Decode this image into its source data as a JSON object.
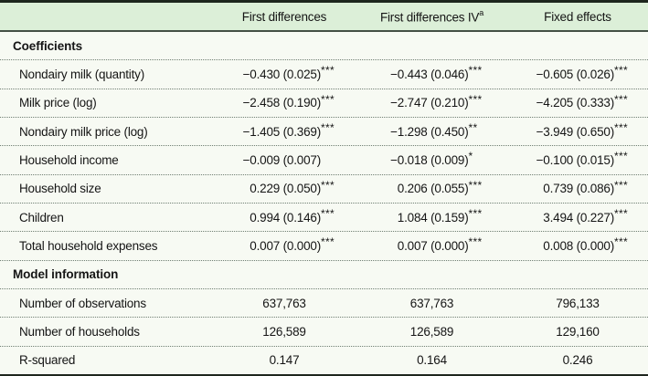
{
  "theme": {
    "header_bg": "#dcefd8",
    "body_bg": "#f7faf3",
    "top_rule": "#1e261e",
    "header_rule": "#445045",
    "dotted_rule": "#6f7e72",
    "text": "#151515"
  },
  "header": {
    "col1": "First differences",
    "col2": "First differences IV",
    "col2_sup": "a",
    "col3": "Fixed effects"
  },
  "sections": [
    {
      "title": "Coefficients",
      "rows": [
        {
          "label": "Nondairy milk (quantity)",
          "c1": "−0.430 (0.025)",
          "s1": "***",
          "c2": "−0.443 (0.046)",
          "s2": "***",
          "c3": "−0.605 (0.026)",
          "s3": "***"
        },
        {
          "label": "Milk price (log)",
          "c1": "−2.458 (0.190)",
          "s1": "***",
          "c2": "−2.747 (0.210)",
          "s2": "***",
          "c3": "−4.205 (0.333)",
          "s3": "***"
        },
        {
          "label": "Nondairy milk price (log)",
          "c1": "−1.405 (0.369)",
          "s1": "***",
          "c2": "−1.298 (0.450)",
          "s2": "**",
          "c3": "−3.949 (0.650)",
          "s3": "***"
        },
        {
          "label": "Household income",
          "c1": "−0.009 (0.007)",
          "s1": "",
          "c2": "−0.018 (0.009)",
          "s2": "*",
          "c3": "−0.100 (0.015)",
          "s3": "***"
        },
        {
          "label": "Household size",
          "c1": "0.229 (0.050)",
          "s1": "***",
          "c2": "0.206 (0.055)",
          "s2": "***",
          "c3": "0.739 (0.086)",
          "s3": "***"
        },
        {
          "label": "Children",
          "c1": "0.994 (0.146)",
          "s1": "***",
          "c2": "1.084 (0.159)",
          "s2": "***",
          "c3": "3.494 (0.227)",
          "s3": "***"
        },
        {
          "label": "Total household expenses",
          "c1": "0.007 (0.000)",
          "s1": "***",
          "c2": "0.007 (0.000)",
          "s2": "***",
          "c3": "0.008 (0.000)",
          "s3": "***"
        }
      ]
    },
    {
      "title": "Model information",
      "rows": [
        {
          "label": "Number of observations",
          "c1": "637,763",
          "c2": "637,763",
          "c3": "796,133"
        },
        {
          "label": "Number of households",
          "c1": "126,589",
          "c2": "126,589",
          "c3": "129,160"
        },
        {
          "label": "R-squared",
          "c1": "0.147",
          "c2": "0.164",
          "c3": "0.246"
        }
      ]
    }
  ]
}
